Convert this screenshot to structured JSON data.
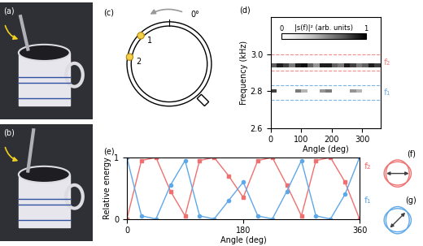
{
  "panel_labels": {
    "a": "(a)",
    "b": "(b)",
    "c": "(c)",
    "d": "(d)",
    "e": "(e)",
    "f": "(f)",
    "g": "(g)"
  },
  "diagram_c": {
    "angle_label": "0°",
    "points": [
      "1",
      "2"
    ]
  },
  "chart_data": [
    {
      "type": "heatmap",
      "xlabel": "Angle (deg)",
      "ylabel": "Frequency (kHz)",
      "xlim": [
        0,
        360
      ],
      "ylim": [
        2.6,
        3.2
      ],
      "xticks": [
        0,
        100,
        200,
        300
      ],
      "yticks": [
        2.6,
        2.8,
        3.0
      ],
      "angle_edges": [
        0,
        20,
        40,
        60,
        80,
        100,
        120,
        140,
        160,
        180,
        200,
        220,
        240,
        260,
        280,
        300,
        320,
        340,
        360
      ],
      "rows": [
        {
          "frequency": [
            2.93,
            2.95
          ],
          "values": [
            0.7,
            0.9,
            0.8,
            0.6,
            0.9,
            0.95,
            0.7,
            0.5,
            0.9,
            0.9,
            0.7,
            0.6,
            0.9,
            0.8,
            0.6,
            0.7,
            0.9,
            0.8
          ]
        },
        {
          "frequency": [
            2.79,
            2.81
          ],
          "values": [
            0.8,
            null,
            null,
            null,
            0.6,
            0.4,
            null,
            null,
            0.5,
            0.6,
            null,
            null,
            null,
            0.5,
            0.4,
            null,
            null,
            null
          ]
        }
      ],
      "bands": [
        {
          "name": "f₂",
          "color": "#f08a8a",
          "frequency": [
            2.91,
            3.0
          ]
        },
        {
          "name": "f₁",
          "color": "#78b4e6",
          "frequency": [
            2.75,
            2.83
          ]
        }
      ],
      "colorbar": {
        "label": "|s(f)|² (arb. units)",
        "range": [
          0,
          1
        ],
        "ticks": [
          0,
          1
        ]
      }
    },
    {
      "type": "line",
      "xlabel": "Angle (deg)",
      "ylabel": "Relative energy",
      "xlim": [
        0,
        360
      ],
      "ylim": [
        0,
        1
      ],
      "xticks": [
        0,
        180,
        360
      ],
      "yticks": [
        0,
        1
      ],
      "x": [
        0,
        22.5,
        45,
        67.5,
        90,
        112.5,
        135,
        157.5,
        180,
        202.5,
        225,
        247.5,
        270,
        292.5,
        315,
        337.5,
        360
      ],
      "series": [
        {
          "name": "f₂",
          "color": "#f07070",
          "marker": "square",
          "values": [
            0.0,
            0.95,
            1.0,
            0.45,
            0.05,
            0.95,
            1.0,
            0.7,
            0.35,
            0.95,
            1.0,
            0.55,
            0.05,
            0.95,
            1.0,
            0.6,
            0.0
          ]
        },
        {
          "name": "f₁",
          "color": "#5fa8e8",
          "marker": "circle",
          "values": [
            1.0,
            0.05,
            0.0,
            0.55,
            0.95,
            0.05,
            0.0,
            0.3,
            0.6,
            0.05,
            0.0,
            0.45,
            0.95,
            0.05,
            0.0,
            0.4,
            1.0
          ]
        }
      ]
    }
  ]
}
